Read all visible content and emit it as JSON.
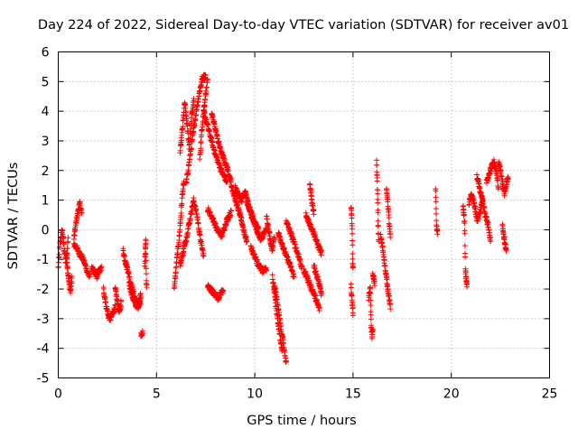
{
  "chart_data": {
    "type": "scatter",
    "title": "Day 224 of 2022, Sidereal Day-to-day VTEC variation (SDTVAR) for receiver av01",
    "xlabel": "GPS time / hours",
    "ylabel": "SDTVAR / TECUs",
    "xlim": [
      0,
      25
    ],
    "ylim": [
      -5,
      6
    ],
    "xticks": [
      "0",
      "5",
      "10",
      "15",
      "20",
      "25"
    ],
    "yticks": [
      "-5",
      "-4",
      "-3",
      "-2",
      "-1",
      "0",
      "1",
      "2",
      "3",
      "4",
      "5",
      "6"
    ],
    "grid": true,
    "marker": "+",
    "color": "#ff0000",
    "series": [
      {
        "name": "SDTVAR",
        "segments": [
          {
            "x0": 0.0,
            "x1": 0.5,
            "y": [
              -1.3,
              -0.4,
              0.0,
              -0.6,
              -1.2,
              -0.3
            ]
          },
          {
            "x0": 0.4,
            "x1": 0.7,
            "y": [
              -0.8,
              -1.3,
              -1.8,
              -2.1,
              -1.6
            ]
          },
          {
            "x0": 0.8,
            "x1": 1.2,
            "y": [
              -0.3,
              0.2,
              0.6,
              0.9,
              0.5
            ]
          },
          {
            "x0": 0.8,
            "x1": 1.6,
            "y": [
              -0.5,
              -0.6,
              -0.8,
              -0.9,
              -1.1,
              -1.4,
              -1.6
            ]
          },
          {
            "x0": 1.7,
            "x1": 2.2,
            "y": [
              -1.3,
              -1.4,
              -1.6,
              -1.4,
              -1.3
            ]
          },
          {
            "x0": 2.3,
            "x1": 2.9,
            "y": [
              -2.0,
              -2.5,
              -2.9,
              -3.0,
              -2.8,
              -2.6
            ]
          },
          {
            "x0": 2.9,
            "x1": 3.2,
            "y": [
              -2.0,
              -2.3,
              -2.6,
              -2.8,
              -2.4
            ]
          },
          {
            "x0": 3.3,
            "x1": 4.2,
            "y": [
              -0.7,
              -1.1,
              -1.4,
              -1.8,
              -2.1,
              -2.4,
              -2.6,
              -2.2
            ]
          },
          {
            "x0": 3.6,
            "x1": 4.2,
            "y": [
              -1.8,
              -2.2,
              -2.5,
              -2.6,
              -2.4
            ]
          },
          {
            "x0": 4.2,
            "x1": 4.3,
            "y": [
              -3.5
            ]
          },
          {
            "x0": 4.4,
            "x1": 4.5,
            "y": [
              -1.3,
              -0.9,
              -0.6,
              -0.3,
              -1.6,
              -2.0
            ]
          },
          {
            "x0": 5.9,
            "x1": 6.4,
            "y": [
              -2.0,
              -1.4,
              -0.8,
              -0.3,
              0.4,
              1.2,
              1.6
            ]
          },
          {
            "x0": 6.2,
            "x1": 6.9,
            "y": [
              2.6,
              3.4,
              4.3,
              3.6,
              2.8,
              3.8,
              4.4
            ]
          },
          {
            "x0": 6.5,
            "x1": 7.5,
            "y": [
              1.5,
              2.3,
              3.1,
              3.9,
              4.6,
              5.1,
              5.2
            ]
          },
          {
            "x0": 6.2,
            "x1": 7.4,
            "y": [
              -1.2,
              -0.7,
              -0.2,
              0.4,
              1.0,
              0.5,
              -0.3,
              -0.9
            ]
          },
          {
            "x0": 7.2,
            "x1": 7.6,
            "y": [
              2.4,
              3.3,
              4.0,
              4.6,
              5.0
            ]
          },
          {
            "x0": 7.4,
            "x1": 8.6,
            "y": [
              4.0,
              3.4,
              2.8,
              2.3,
              1.9,
              1.6
            ]
          },
          {
            "x0": 7.6,
            "x1": 8.4,
            "y": [
              -1.9,
              -2.1,
              -2.3,
              -2.0
            ]
          },
          {
            "x0": 7.8,
            "x1": 8.8,
            "y": [
              3.9,
              3.5,
              3.0,
              2.6,
              2.3,
              2.0,
              1.6
            ]
          },
          {
            "x0": 7.6,
            "x1": 8.8,
            "y": [
              0.7,
              0.4,
              0.0,
              -0.2,
              0.3,
              0.6
            ]
          },
          {
            "x0": 8.8,
            "x1": 9.6,
            "y": [
              1.5,
              1.2,
              0.9,
              0.6,
              0.3,
              -0.1,
              -0.4
            ]
          },
          {
            "x0": 9.0,
            "x1": 10.2,
            "y": [
              1.4,
              1.2,
              1.0,
              1.3,
              0.8,
              0.5,
              0.2,
              0.0
            ]
          },
          {
            "x0": 9.6,
            "x1": 10.6,
            "y": [
              0.9,
              0.6,
              0.3,
              0.0,
              -0.3,
              -0.2,
              0.1
            ]
          },
          {
            "x0": 9.8,
            "x1": 10.6,
            "y": [
              -0.6,
              -0.9,
              -1.2,
              -1.4,
              -1.3
            ]
          },
          {
            "x0": 10.6,
            "x1": 11.0,
            "y": [
              0.4,
              0.0,
              -0.4,
              -0.7,
              -0.2
            ]
          },
          {
            "x0": 10.9,
            "x1": 11.4,
            "y": [
              -1.6,
              -2.2,
              -3.0,
              -3.6,
              -4.1
            ]
          },
          {
            "x0": 11.0,
            "x1": 11.6,
            "y": [
              -1.9,
              -2.4,
              -3.2,
              -3.8,
              -4.5
            ]
          },
          {
            "x0": 11.2,
            "x1": 12.0,
            "y": [
              -0.1,
              -0.5,
              -0.9,
              -1.2,
              -1.6
            ]
          },
          {
            "x0": 11.6,
            "x1": 12.4,
            "y": [
              0.3,
              0.0,
              -0.3,
              -0.6,
              -0.9,
              -1.3
            ]
          },
          {
            "x0": 12.5,
            "x1": 13.3,
            "y": [
              -1.4,
              -1.6,
              -1.9,
              -2.1,
              -2.4,
              -2.7
            ]
          },
          {
            "x0": 12.6,
            "x1": 13.4,
            "y": [
              0.5,
              0.2,
              -0.1,
              -0.5,
              -0.8
            ]
          },
          {
            "x0": 12.8,
            "x1": 13.0,
            "y": [
              1.5,
              1.0,
              0.6
            ]
          },
          {
            "x0": 13.0,
            "x1": 13.4,
            "y": [
              -1.2,
              -1.5,
              -1.8,
              -2.2
            ]
          },
          {
            "x0": 14.9,
            "x1": 15.0,
            "y": [
              0.8,
              0.5,
              0.2,
              -1.0,
              -1.3
            ]
          },
          {
            "x0": 14.9,
            "x1": 15.0,
            "y": [
              -1.9,
              -2.4,
              -2.8
            ]
          },
          {
            "x0": 15.8,
            "x1": 16.0,
            "y": [
              -2.3,
              -2.1,
              -2.0,
              -3.2,
              -3.6,
              -3.4
            ]
          },
          {
            "x0": 16.0,
            "x1": 16.1,
            "y": [
              -1.5,
              -1.8
            ]
          },
          {
            "x0": 16.2,
            "x1": 16.3,
            "y": [
              2.3,
              1.8,
              1.1,
              0.2,
              -0.4
            ]
          },
          {
            "x0": 16.4,
            "x1": 16.9,
            "y": [
              -0.2,
              -0.5,
              -0.9,
              -1.4,
              -1.8,
              -2.2,
              -2.6
            ]
          },
          {
            "x0": 16.7,
            "x1": 16.9,
            "y": [
              1.3,
              1.0,
              0.3,
              -0.3
            ]
          },
          {
            "x0": 19.2,
            "x1": 19.3,
            "y": [
              1.4,
              0.1,
              -0.1
            ]
          },
          {
            "x0": 20.6,
            "x1": 20.8,
            "y": [
              0.8,
              0.5,
              0.2,
              -1.4,
              -1.7,
              -1.9
            ]
          },
          {
            "x0": 20.9,
            "x1": 21.6,
            "y": [
              0.9,
              1.2,
              0.8,
              0.3,
              0.6,
              1.0
            ]
          },
          {
            "x0": 21.3,
            "x1": 22.0,
            "y": [
              1.8,
              1.4,
              1.0,
              0.5,
              0.2,
              -0.4
            ]
          },
          {
            "x0": 21.8,
            "x1": 22.4,
            "y": [
              1.6,
              1.9,
              2.1,
              2.3,
              2.0,
              1.4
            ]
          },
          {
            "x0": 22.4,
            "x1": 22.9,
            "y": [
              2.3,
              2.0,
              1.6,
              1.2,
              1.5,
              1.8
            ]
          },
          {
            "x0": 22.6,
            "x1": 22.8,
            "y": [
              0.2,
              -0.2,
              -0.5,
              -0.7
            ]
          }
        ]
      }
    ]
  }
}
